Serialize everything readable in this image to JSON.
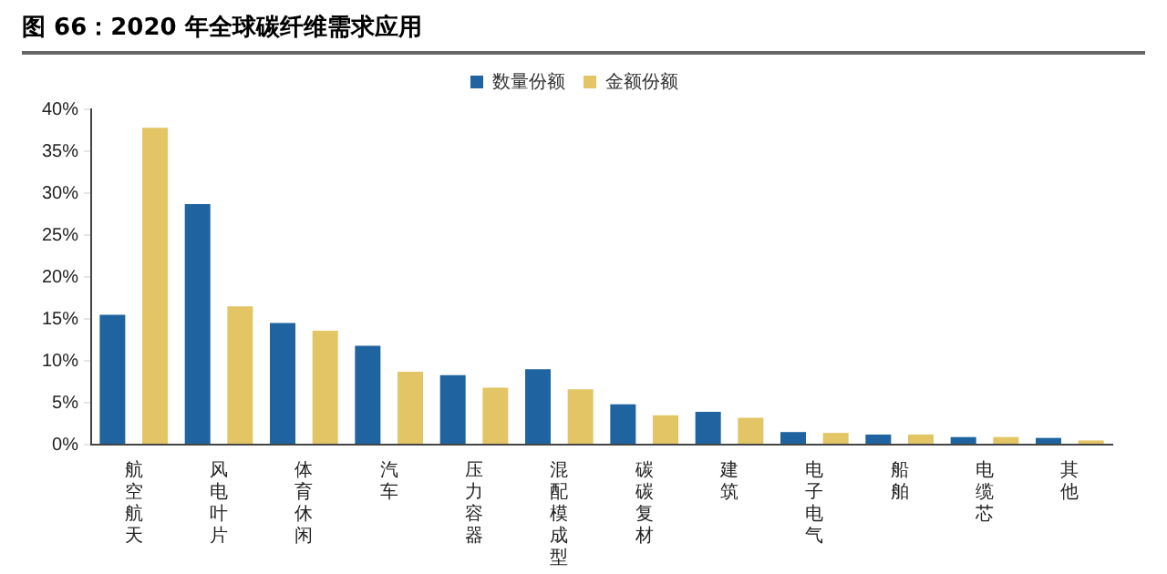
{
  "chart_data": {
    "type": "bar",
    "title": "图 66：2020 年全球碳纤维需求应用",
    "categories": [
      "航空航天",
      "风电叶片",
      "体育休闲",
      "汽车",
      "压力容器",
      "混配模成型",
      "碳碳复材",
      "建筑",
      "电子电气",
      "船舶",
      "电缆芯",
      "其他"
    ],
    "series": [
      {
        "name": "数量份额",
        "color": "#1f64a0",
        "values": [
          15.5,
          28.7,
          14.5,
          11.8,
          8.3,
          9.0,
          4.8,
          3.9,
          1.5,
          1.2,
          0.9,
          0.8
        ]
      },
      {
        "name": "金额份额",
        "color": "#e3c565",
        "values": [
          37.8,
          16.5,
          13.6,
          8.7,
          6.8,
          6.6,
          3.5,
          3.2,
          1.4,
          1.2,
          0.9,
          0.5
        ]
      }
    ],
    "ylim": [
      0,
      40
    ],
    "yticks": [
      {
        "value": 0,
        "label": "0%"
      },
      {
        "value": 5,
        "label": "5%"
      },
      {
        "value": 10,
        "label": "10%"
      },
      {
        "value": 15,
        "label": "15%"
      },
      {
        "value": 20,
        "label": "20%"
      },
      {
        "value": 25,
        "label": "25%"
      },
      {
        "value": 30,
        "label": "30%"
      },
      {
        "value": 35,
        "label": "35%"
      },
      {
        "value": 40,
        "label": "40%"
      }
    ],
    "grid": false,
    "legend": "top"
  }
}
